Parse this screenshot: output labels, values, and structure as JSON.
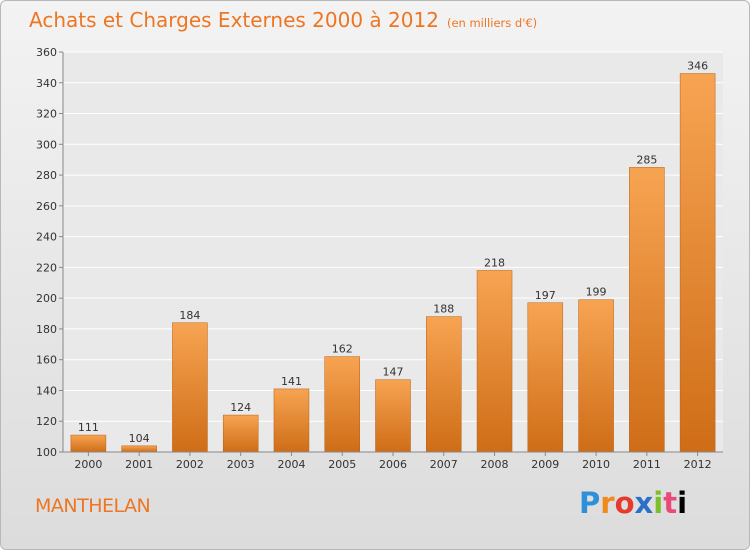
{
  "header": {
    "title": "Achats et Charges Externes 2000 à 2012",
    "subtitle": "(en milliers d'€)"
  },
  "footer": {
    "place": "MANTHELAN",
    "logo": "Proxiti"
  },
  "colors": {
    "title": "#ee7622",
    "bar_top": "#f7a452",
    "bar_bottom": "#cf6d17"
  },
  "chart_data": {
    "type": "bar",
    "title": "Achats et Charges Externes 2000 à 2012",
    "subtitle": "(en milliers d'€)",
    "categories": [
      "2000",
      "2001",
      "2002",
      "2003",
      "2004",
      "2005",
      "2006",
      "2007",
      "2008",
      "2009",
      "2010",
      "2011",
      "2012"
    ],
    "values": [
      111,
      104,
      184,
      124,
      141,
      162,
      147,
      188,
      218,
      197,
      199,
      285,
      346
    ],
    "ylim": [
      100,
      360
    ],
    "yticks": [
      100,
      120,
      140,
      160,
      180,
      200,
      220,
      240,
      260,
      280,
      300,
      320,
      340,
      360
    ],
    "grid": true,
    "data_labels": true
  }
}
